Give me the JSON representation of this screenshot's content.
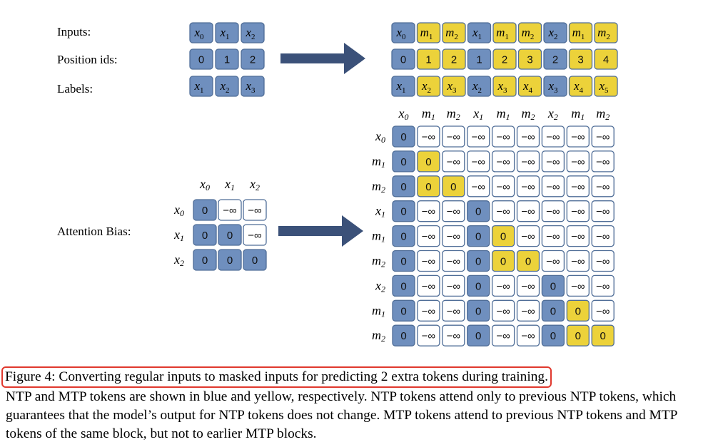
{
  "labels": {
    "inputs": "Inputs:",
    "position_ids": "Position ids:",
    "labels": "Labels:",
    "attention_bias": "Attention Bias:"
  },
  "regular": {
    "inputs": [
      [
        "x",
        "0"
      ],
      [
        "x",
        "1"
      ],
      [
        "x",
        "2"
      ]
    ],
    "position_ids": [
      "0",
      "1",
      "2"
    ],
    "labels": [
      [
        "x",
        "1"
      ],
      [
        "x",
        "2"
      ],
      [
        "x",
        "3"
      ]
    ],
    "attention_headers": [
      [
        "x",
        "0"
      ],
      [
        "x",
        "1"
      ],
      [
        "x",
        "2"
      ]
    ],
    "attention_matrix": [
      [
        "0",
        "−∞",
        "−∞"
      ],
      [
        "0",
        "0",
        "−∞"
      ],
      [
        "0",
        "0",
        "0"
      ]
    ],
    "attention_cell_types": [
      [
        "ntp",
        "mask",
        "mask"
      ],
      [
        "ntp",
        "ntp",
        "mask"
      ],
      [
        "ntp",
        "ntp",
        "ntp"
      ]
    ]
  },
  "masked": {
    "inputs": [
      [
        "x",
        "0"
      ],
      [
        "m",
        "1"
      ],
      [
        "m",
        "2"
      ],
      [
        "x",
        "1"
      ],
      [
        "m",
        "1"
      ],
      [
        "m",
        "2"
      ],
      [
        "x",
        "2"
      ],
      [
        "m",
        "1"
      ],
      [
        "m",
        "2"
      ]
    ],
    "input_types": [
      "ntp",
      "mtp",
      "mtp",
      "ntp",
      "mtp",
      "mtp",
      "ntp",
      "mtp",
      "mtp"
    ],
    "position_ids": [
      "0",
      "1",
      "2",
      "1",
      "2",
      "3",
      "2",
      "3",
      "4"
    ],
    "labels": [
      [
        "x",
        "1"
      ],
      [
        "x",
        "2"
      ],
      [
        "x",
        "3"
      ],
      [
        "x",
        "2"
      ],
      [
        "x",
        "3"
      ],
      [
        "x",
        "4"
      ],
      [
        "x",
        "3"
      ],
      [
        "x",
        "4"
      ],
      [
        "x",
        "5"
      ]
    ],
    "attention_headers": [
      [
        "x",
        "0"
      ],
      [
        "m",
        "1"
      ],
      [
        "m",
        "2"
      ],
      [
        "x",
        "1"
      ],
      [
        "m",
        "1"
      ],
      [
        "m",
        "2"
      ],
      [
        "x",
        "2"
      ],
      [
        "m",
        "1"
      ],
      [
        "m",
        "2"
      ]
    ],
    "attention_matrix": [
      [
        "0",
        "−∞",
        "−∞",
        "−∞",
        "−∞",
        "−∞",
        "−∞",
        "−∞",
        "−∞"
      ],
      [
        "0",
        "0",
        "−∞",
        "−∞",
        "−∞",
        "−∞",
        "−∞",
        "−∞",
        "−∞"
      ],
      [
        "0",
        "0",
        "0",
        "−∞",
        "−∞",
        "−∞",
        "−∞",
        "−∞",
        "−∞"
      ],
      [
        "0",
        "−∞",
        "−∞",
        "0",
        "−∞",
        "−∞",
        "−∞",
        "−∞",
        "−∞"
      ],
      [
        "0",
        "−∞",
        "−∞",
        "0",
        "0",
        "−∞",
        "−∞",
        "−∞",
        "−∞"
      ],
      [
        "0",
        "−∞",
        "−∞",
        "0",
        "0",
        "0",
        "−∞",
        "−∞",
        "−∞"
      ],
      [
        "0",
        "−∞",
        "−∞",
        "0",
        "−∞",
        "−∞",
        "0",
        "−∞",
        "−∞"
      ],
      [
        "0",
        "−∞",
        "−∞",
        "0",
        "−∞",
        "−∞",
        "0",
        "0",
        "−∞"
      ],
      [
        "0",
        "−∞",
        "−∞",
        "0",
        "−∞",
        "−∞",
        "0",
        "0",
        "0"
      ]
    ],
    "attention_cell_types": [
      [
        "ntp",
        "mask",
        "mask",
        "mask",
        "mask",
        "mask",
        "mask",
        "mask",
        "mask"
      ],
      [
        "ntp",
        "mtp",
        "mask",
        "mask",
        "mask",
        "mask",
        "mask",
        "mask",
        "mask"
      ],
      [
        "ntp",
        "mtp",
        "mtp",
        "mask",
        "mask",
        "mask",
        "mask",
        "mask",
        "mask"
      ],
      [
        "ntp",
        "mask",
        "mask",
        "ntp",
        "mask",
        "mask",
        "mask",
        "mask",
        "mask"
      ],
      [
        "ntp",
        "mask",
        "mask",
        "ntp",
        "mtp",
        "mask",
        "mask",
        "mask",
        "mask"
      ],
      [
        "ntp",
        "mask",
        "mask",
        "ntp",
        "mtp",
        "mtp",
        "mask",
        "mask",
        "mask"
      ],
      [
        "ntp",
        "mask",
        "mask",
        "ntp",
        "mask",
        "mask",
        "ntp",
        "mask",
        "mask"
      ],
      [
        "ntp",
        "mask",
        "mask",
        "ntp",
        "mask",
        "mask",
        "ntp",
        "mtp",
        "mask"
      ],
      [
        "ntp",
        "mask",
        "mask",
        "ntp",
        "mask",
        "mask",
        "ntp",
        "mtp",
        "mtp"
      ]
    ]
  },
  "colors": {
    "ntp": "#6f8fbe",
    "mtp": "#ecd23a",
    "mask": "#ffffff",
    "cell_border": "#4f6d97",
    "arrow": "#3b5179",
    "caption_highlight": "#e0382d"
  },
  "caption": {
    "first_line": "Figure 4: Converting regular inputs to masked inputs for predicting 2 extra tokens during training.",
    "rest": "NTP and MTP tokens are shown in blue and yellow, respectively. NTP tokens attend only to previous NTP tokens, which guarantees that the model’s output for NTP tokens does not change. MTP tokens attend to previous NTP tokens and MTP tokens of the same block, but not to earlier MTP blocks."
  }
}
